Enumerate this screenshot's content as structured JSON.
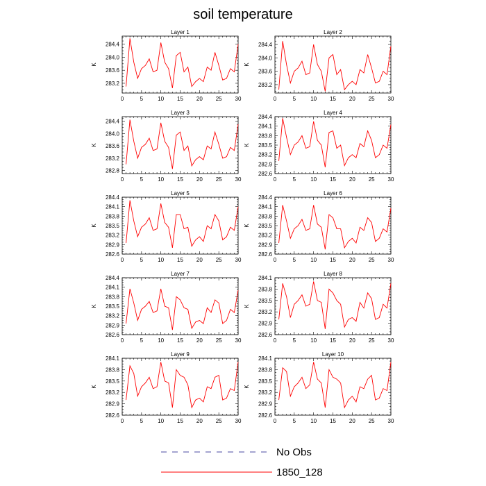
{
  "chart_data": {
    "type": "line",
    "title": "soil temperature",
    "xlabel": "",
    "ylabel": "K",
    "xlim": [
      0,
      30
    ],
    "xticks": [
      0,
      5,
      10,
      15,
      20,
      25,
      30
    ],
    "legend": {
      "placement": "bottom-center",
      "entries": [
        {
          "name": "No Obs",
          "style": "dashed",
          "color": "#4a4aa0"
        },
        {
          "name": "1850_128",
          "style": "solid",
          "color": "#ff0000"
        }
      ]
    },
    "panels": [
      {
        "title": "Layer 1",
        "ylim": [
          282.9,
          284.65
        ],
        "yticks": [
          "283.2",
          "283.6",
          "284.0",
          "284.4"
        ],
        "x": [
          1,
          2,
          3,
          4,
          5,
          6,
          7,
          8,
          9,
          10,
          11,
          12,
          13,
          14,
          15,
          16,
          17,
          18,
          19,
          20,
          21,
          22,
          23,
          24,
          25,
          26,
          27,
          28,
          29,
          30
        ],
        "values": [
          283.1,
          284.58,
          283.85,
          283.35,
          283.65,
          283.75,
          283.95,
          283.55,
          283.6,
          284.45,
          283.85,
          283.65,
          283.05,
          284.05,
          284.15,
          283.55,
          283.7,
          283.1,
          283.25,
          283.35,
          283.25,
          283.7,
          283.6,
          284.15,
          283.75,
          283.3,
          283.35,
          283.65,
          283.55,
          284.4
        ]
      },
      {
        "title": "Layer 2",
        "ylim": [
          282.95,
          284.65
        ],
        "yticks": [
          "283.2",
          "283.6",
          "284.0",
          "284.4"
        ],
        "x": [
          1,
          2,
          3,
          4,
          5,
          6,
          7,
          8,
          9,
          10,
          11,
          12,
          13,
          14,
          15,
          16,
          17,
          18,
          19,
          20,
          21,
          22,
          23,
          24,
          25,
          26,
          27,
          28,
          29,
          30
        ],
        "values": [
          283.05,
          284.5,
          283.8,
          283.25,
          283.6,
          283.7,
          283.9,
          283.5,
          283.55,
          284.4,
          283.8,
          283.6,
          283.0,
          284.0,
          284.1,
          283.5,
          283.65,
          283.05,
          283.2,
          283.3,
          283.2,
          283.65,
          283.55,
          284.1,
          283.7,
          283.25,
          283.3,
          283.6,
          283.5,
          284.35
        ]
      },
      {
        "title": "Layer 3",
        "ylim": [
          282.7,
          284.55
        ],
        "yticks": [
          "282.8",
          "283.2",
          "283.6",
          "284.0",
          "284.4"
        ],
        "x": [
          1,
          2,
          3,
          4,
          5,
          6,
          7,
          8,
          9,
          10,
          11,
          12,
          13,
          14,
          15,
          16,
          17,
          18,
          19,
          20,
          21,
          22,
          23,
          24,
          25,
          26,
          27,
          28,
          29,
          30
        ],
        "values": [
          283.0,
          284.45,
          283.75,
          283.2,
          283.55,
          283.65,
          283.85,
          283.45,
          283.5,
          284.35,
          283.75,
          283.55,
          282.85,
          283.95,
          284.05,
          283.45,
          283.6,
          282.95,
          283.15,
          283.25,
          283.15,
          283.6,
          283.5,
          284.05,
          283.65,
          283.2,
          283.25,
          283.55,
          283.45,
          284.3
        ]
      },
      {
        "title": "Layer 4",
        "ylim": [
          282.6,
          284.4
        ],
        "yticks": [
          "282.6",
          "282.9",
          "283.2",
          "283.5",
          "283.8",
          "284.1",
          "284.4"
        ],
        "x": [
          1,
          2,
          3,
          4,
          5,
          6,
          7,
          8,
          9,
          10,
          11,
          12,
          13,
          14,
          15,
          16,
          17,
          18,
          19,
          20,
          21,
          22,
          23,
          24,
          25,
          26,
          27,
          28,
          29,
          30
        ],
        "values": [
          283.0,
          284.35,
          283.75,
          283.2,
          283.5,
          283.6,
          283.8,
          283.4,
          283.45,
          284.25,
          283.65,
          283.5,
          282.8,
          283.9,
          283.95,
          283.4,
          283.5,
          282.85,
          283.1,
          283.2,
          283.1,
          283.55,
          283.45,
          283.95,
          283.65,
          283.1,
          283.2,
          283.5,
          283.4,
          284.15
        ]
      },
      {
        "title": "Layer 5",
        "ylim": [
          282.6,
          284.4
        ],
        "yticks": [
          "282.6",
          "282.9",
          "283.2",
          "283.5",
          "283.8",
          "284.1",
          "284.4"
        ],
        "x": [
          1,
          2,
          3,
          4,
          5,
          6,
          7,
          8,
          9,
          10,
          11,
          12,
          13,
          14,
          15,
          16,
          17,
          18,
          19,
          20,
          21,
          22,
          23,
          24,
          25,
          26,
          27,
          28,
          29,
          30
        ],
        "values": [
          282.95,
          284.3,
          283.65,
          283.15,
          283.45,
          283.55,
          283.75,
          283.35,
          283.4,
          284.2,
          283.6,
          283.45,
          282.8,
          283.85,
          283.85,
          283.4,
          283.45,
          282.85,
          283.05,
          283.15,
          283.0,
          283.5,
          283.4,
          283.85,
          283.65,
          283.05,
          283.15,
          283.45,
          283.35,
          284.1
        ]
      },
      {
        "title": "Layer 6",
        "ylim": [
          282.6,
          284.4
        ],
        "yticks": [
          "282.6",
          "282.9",
          "283.2",
          "283.5",
          "283.8",
          "284.1",
          "284.4"
        ],
        "x": [
          1,
          2,
          3,
          4,
          5,
          6,
          7,
          8,
          9,
          10,
          11,
          12,
          13,
          14,
          15,
          16,
          17,
          18,
          19,
          20,
          21,
          22,
          23,
          24,
          25,
          26,
          27,
          28,
          29,
          30
        ],
        "values": [
          282.95,
          284.15,
          283.65,
          283.1,
          283.4,
          283.5,
          283.7,
          283.35,
          283.4,
          284.15,
          283.55,
          283.45,
          282.75,
          283.85,
          283.75,
          283.4,
          283.4,
          282.8,
          283.0,
          283.1,
          282.95,
          283.45,
          283.35,
          283.75,
          283.6,
          283.0,
          283.1,
          283.4,
          283.3,
          284.05
        ]
      },
      {
        "title": "Layer 7",
        "ylim": [
          282.6,
          284.4
        ],
        "yticks": [
          "282.6",
          "282.9",
          "283.2",
          "283.5",
          "283.8",
          "284.1",
          "284.4"
        ],
        "x": [
          1,
          2,
          3,
          4,
          5,
          6,
          7,
          8,
          9,
          10,
          11,
          12,
          13,
          14,
          15,
          16,
          17,
          18,
          19,
          20,
          21,
          22,
          23,
          24,
          25,
          26,
          27,
          28,
          29,
          30
        ],
        "values": [
          282.95,
          284.05,
          283.6,
          283.05,
          283.4,
          283.5,
          283.65,
          283.3,
          283.35,
          284.05,
          283.5,
          283.45,
          282.75,
          283.8,
          283.7,
          283.45,
          283.4,
          282.8,
          283.0,
          283.05,
          282.95,
          283.45,
          283.3,
          283.7,
          283.6,
          282.95,
          283.05,
          283.4,
          283.3,
          284.0
        ]
      },
      {
        "title": "Layer 8",
        "ylim": [
          282.6,
          284.1
        ],
        "yticks": [
          "282.6",
          "282.9",
          "283.2",
          "283.5",
          "283.8",
          "284.1"
        ],
        "x": [
          1,
          2,
          3,
          4,
          5,
          6,
          7,
          8,
          9,
          10,
          11,
          12,
          13,
          14,
          15,
          16,
          17,
          18,
          19,
          20,
          21,
          22,
          23,
          24,
          25,
          26,
          27,
          28,
          29,
          30
        ],
        "values": [
          283.0,
          283.95,
          283.6,
          283.05,
          283.4,
          283.5,
          283.65,
          283.35,
          283.4,
          284.0,
          283.5,
          283.45,
          282.75,
          283.8,
          283.7,
          283.5,
          283.4,
          282.8,
          283.0,
          283.05,
          282.95,
          283.45,
          283.3,
          283.7,
          283.55,
          283.0,
          283.05,
          283.4,
          283.3,
          283.95
        ]
      },
      {
        "title": "Layer 9",
        "ylim": [
          282.6,
          284.1
        ],
        "yticks": [
          "282.6",
          "282.9",
          "283.2",
          "283.5",
          "283.8",
          "284.1"
        ],
        "x": [
          1,
          2,
          3,
          4,
          5,
          6,
          7,
          8,
          9,
          10,
          11,
          12,
          13,
          14,
          15,
          16,
          17,
          18,
          19,
          20,
          21,
          22,
          23,
          24,
          25,
          26,
          27,
          28,
          29,
          30
        ],
        "values": [
          283.0,
          283.9,
          283.7,
          283.1,
          283.35,
          283.45,
          283.6,
          283.3,
          283.35,
          284.0,
          283.5,
          283.45,
          282.8,
          283.8,
          283.65,
          283.6,
          283.4,
          282.8,
          283.0,
          283.05,
          282.95,
          283.35,
          283.3,
          283.6,
          283.65,
          283.0,
          283.05,
          283.3,
          283.25,
          284.0
        ]
      },
      {
        "title": "Layer 10",
        "ylim": [
          282.6,
          284.1
        ],
        "yticks": [
          "282.6",
          "282.9",
          "283.2",
          "283.5",
          "283.8",
          "284.1"
        ],
        "x": [
          1,
          2,
          3,
          4,
          5,
          6,
          7,
          8,
          9,
          10,
          11,
          12,
          13,
          14,
          15,
          16,
          17,
          18,
          19,
          20,
          21,
          22,
          23,
          24,
          25,
          26,
          27,
          28,
          29,
          30
        ],
        "values": [
          283.0,
          283.85,
          283.75,
          283.1,
          283.35,
          283.45,
          283.6,
          283.3,
          283.4,
          284.0,
          283.55,
          283.45,
          282.8,
          283.8,
          283.6,
          283.55,
          283.45,
          282.8,
          283.0,
          283.1,
          282.95,
          283.35,
          283.3,
          283.55,
          283.65,
          283.0,
          283.05,
          283.3,
          283.25,
          284.0
        ]
      }
    ]
  }
}
